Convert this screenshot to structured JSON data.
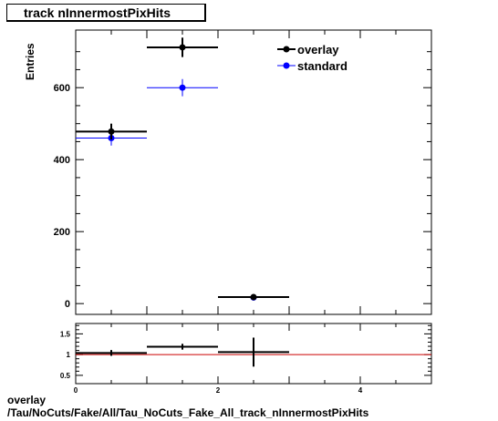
{
  "chart_data": [
    {
      "type": "histogram",
      "title": "track nInnermostPixHits",
      "ylabel": "Entries",
      "xlim": [
        0,
        5
      ],
      "ylim": [
        -30,
        760
      ],
      "yticks": [
        0,
        200,
        400,
        600
      ],
      "legend_position": "top-right",
      "series": [
        {
          "name": "overlay",
          "color": "#000000",
          "marker": "filled-circle",
          "bins": [
            {
              "x_low": 0,
              "x_high": 1,
              "y": 478,
              "err": 22
            },
            {
              "x_low": 1,
              "x_high": 2,
              "y": 712,
              "err": 27
            },
            {
              "x_low": 2,
              "x_high": 3,
              "y": 18,
              "err": 4
            }
          ]
        },
        {
          "name": "standard",
          "color": "#0000ff",
          "marker": "filled-circle",
          "bins": [
            {
              "x_low": 0,
              "x_high": 1,
              "y": 460,
              "err": 21
            },
            {
              "x_low": 1,
              "x_high": 2,
              "y": 600,
              "err": 24
            },
            {
              "x_low": 2,
              "x_high": 3,
              "y": 17,
              "err": 4
            }
          ]
        }
      ]
    },
    {
      "type": "ratio",
      "xlim": [
        0,
        5
      ],
      "ylim": [
        0.3,
        1.75
      ],
      "yticks": [
        "0.5",
        "1",
        "1.5"
      ],
      "xticks": [
        "0",
        "2",
        "4"
      ],
      "reference_line": {
        "y": 1,
        "color": "#cc0000"
      },
      "bins": [
        {
          "x_low": 0,
          "x_high": 1,
          "y": 1.04,
          "err": 0.07
        },
        {
          "x_low": 1,
          "x_high": 2,
          "y": 1.19,
          "err": 0.07
        },
        {
          "x_low": 2,
          "x_high": 3,
          "y": 1.06,
          "err": 0.35
        }
      ]
    }
  ],
  "footer": {
    "line1": "overlay",
    "line2": "/Tau/NoCuts/Fake/All/Tau_NoCuts_Fake_All_track_nInnermostPixHits"
  }
}
